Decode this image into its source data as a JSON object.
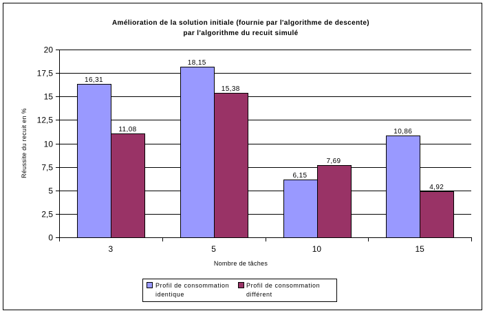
{
  "chart_data": {
    "type": "bar",
    "title": [
      "Amélioration de la solution initiale (fournie par l'algorithme de descente)",
      "par l'algorithme du recuit simulé"
    ],
    "xlabel": "Nombre de tâches",
    "ylabel": "Réussite du recuit en %",
    "categories": [
      "3",
      "5",
      "10",
      "15"
    ],
    "series": [
      {
        "name": [
          "Profil de consommation",
          "identique"
        ],
        "color": "#9999ff",
        "values": [
          16.31,
          18.15,
          6.15,
          10.86
        ],
        "labels": [
          "16,31",
          "18,15",
          "6,15",
          "10,86"
        ]
      },
      {
        "name": [
          "Profil de consommation",
          "différent"
        ],
        "color": "#993366",
        "values": [
          11.08,
          15.38,
          7.69,
          4.92
        ],
        "labels": [
          "11,08",
          "15,38",
          "7,69",
          "4,92"
        ]
      }
    ],
    "ylim": [
      0,
      20
    ],
    "yticks": [
      0,
      2.5,
      5,
      7.5,
      10,
      12.5,
      15,
      17.5,
      20
    ],
    "ytick_labels": [
      "0",
      "2,5",
      "5",
      "7,5",
      "10",
      "12,5",
      "15",
      "17,5",
      "20"
    ],
    "grid": true,
    "legend_position": "bottom-center"
  }
}
